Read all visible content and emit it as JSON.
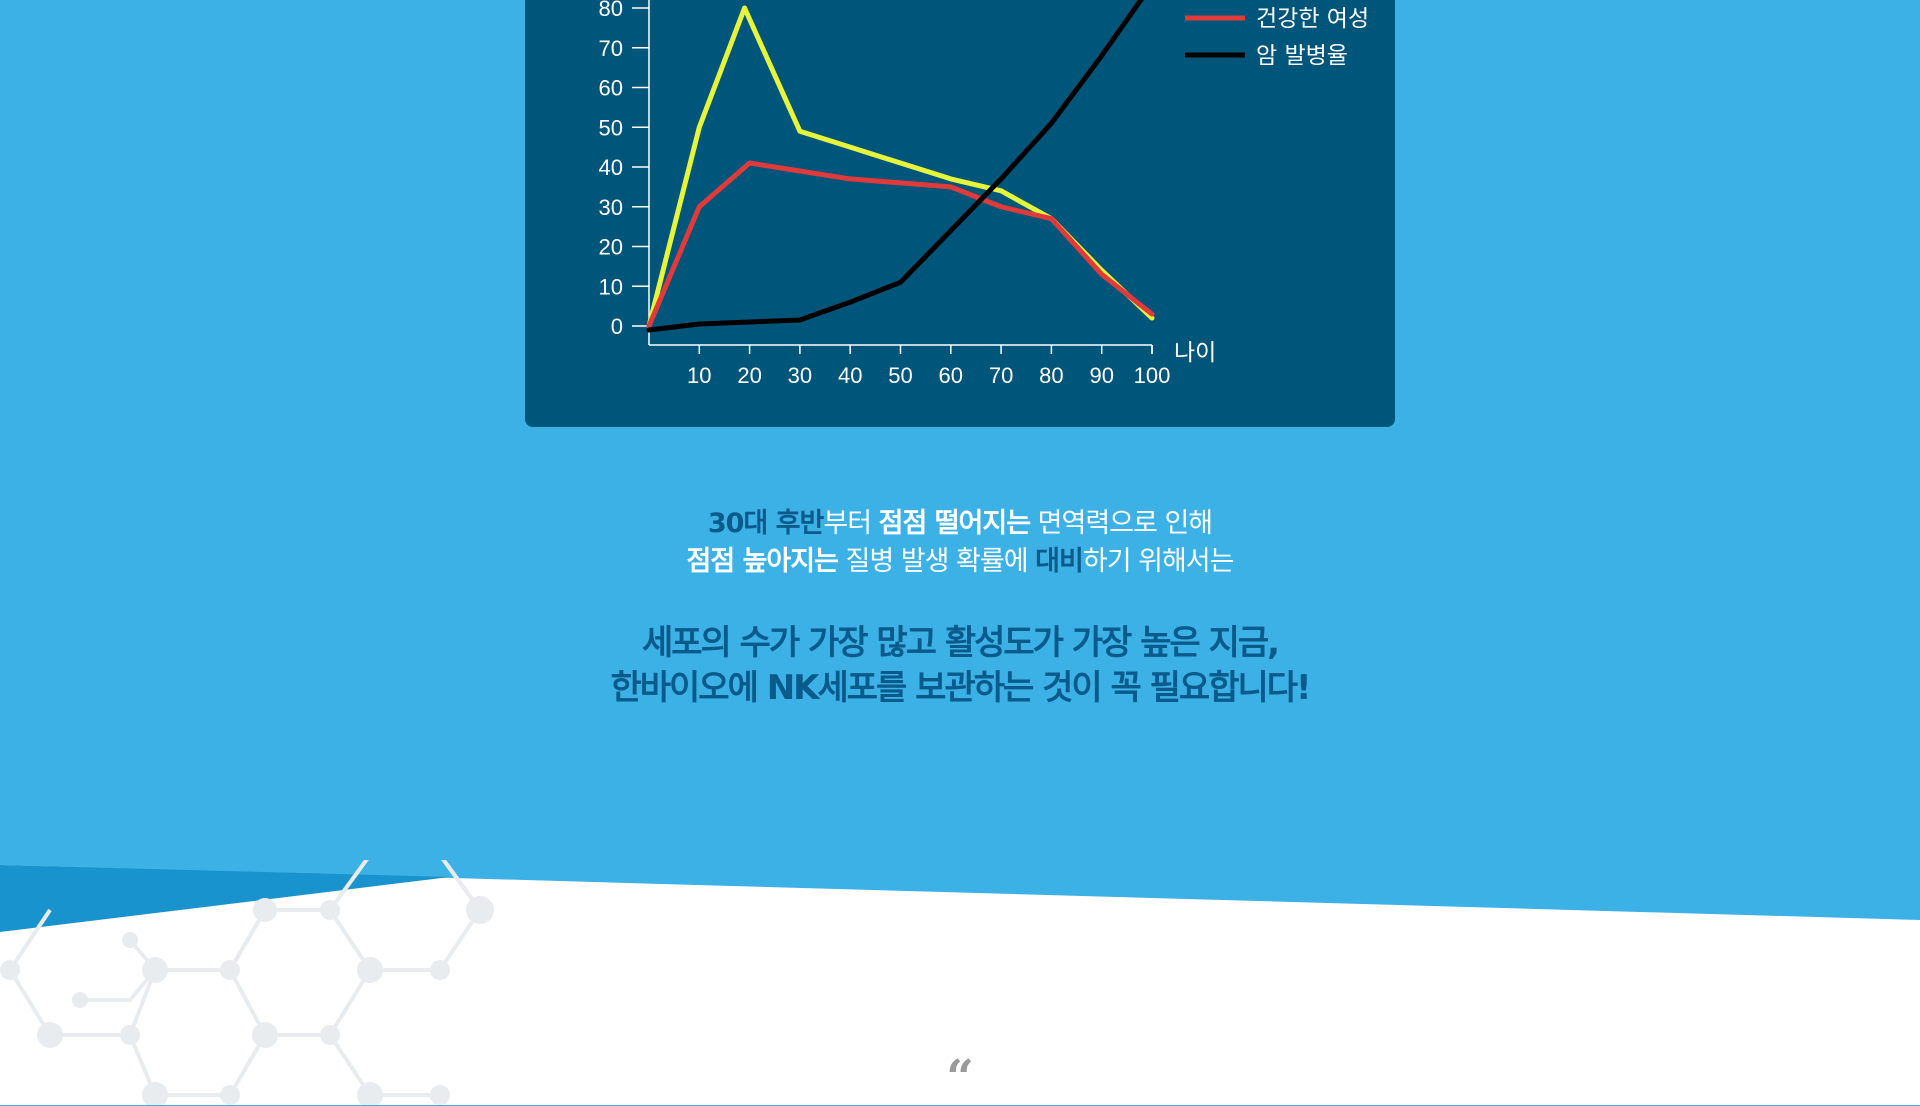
{
  "chart_data": {
    "type": "line",
    "x": [
      0,
      10,
      20,
      30,
      40,
      50,
      60,
      70,
      80,
      90,
      100
    ],
    "x_ticks": [
      "10",
      "20",
      "30",
      "40",
      "50",
      "60",
      "70",
      "80",
      "90",
      "100"
    ],
    "y_ticks": [
      "0",
      "10",
      "20",
      "30",
      "40",
      "50",
      "60",
      "70",
      "80"
    ],
    "xlabel": "나이",
    "ylim": [
      0,
      80
    ],
    "xlim": [
      0,
      100
    ],
    "legend_position": "top-right",
    "series": [
      {
        "name": "",
        "color": "#e6f53c",
        "points": [
          [
            0,
            0
          ],
          [
            10,
            50
          ],
          [
            19,
            80
          ],
          [
            30,
            49
          ],
          [
            40,
            45
          ],
          [
            50,
            41
          ],
          [
            60,
            37
          ],
          [
            70,
            34
          ],
          [
            80,
            27
          ],
          [
            90,
            14
          ],
          [
            100,
            2
          ]
        ]
      },
      {
        "name": "건강한 여성",
        "color": "#e03a3a",
        "points": [
          [
            0,
            0
          ],
          [
            10,
            30
          ],
          [
            20,
            41
          ],
          [
            30,
            39
          ],
          [
            40,
            37
          ],
          [
            50,
            36
          ],
          [
            60,
            35
          ],
          [
            70,
            30
          ],
          [
            80,
            27
          ],
          [
            90,
            13
          ],
          [
            100,
            3
          ]
        ]
      },
      {
        "name": "암 발병율",
        "color": "#000000",
        "points": [
          [
            0,
            -1
          ],
          [
            10,
            0.5
          ],
          [
            20,
            1
          ],
          [
            30,
            1.5
          ],
          [
            40,
            6
          ],
          [
            50,
            11
          ],
          [
            60,
            24
          ],
          [
            70,
            37
          ],
          [
            80,
            51
          ],
          [
            90,
            68
          ],
          [
            100,
            86
          ]
        ]
      }
    ]
  },
  "intro": {
    "line1": [
      {
        "text": "30대 후반",
        "style": "dark"
      },
      {
        "text": "부터 ",
        "style": "light"
      },
      {
        "text": "점점 떨어지는",
        "style": "bold-white"
      },
      {
        "text": " 면역력으로 인해",
        "style": "light"
      }
    ],
    "line2": [
      {
        "text": "점점 높아지는",
        "style": "bold-white"
      },
      {
        "text": " 질병 발생 확률에 ",
        "style": "light"
      },
      {
        "text": "대비",
        "style": "dark"
      },
      {
        "text": "하기 위해서는",
        "style": "light"
      }
    ]
  },
  "headline": {
    "line1": "세포의 수가 가장 많고 활성도가 가장 높은 지금,",
    "line2": "한바이오에 NK세포를 보관하는 것이 꼭 필요합니다!"
  },
  "quote_mark": "“",
  "colors": {
    "background": "#3cb1e6",
    "panel": "#00557b",
    "accent_dark": "#0a5a8c"
  }
}
